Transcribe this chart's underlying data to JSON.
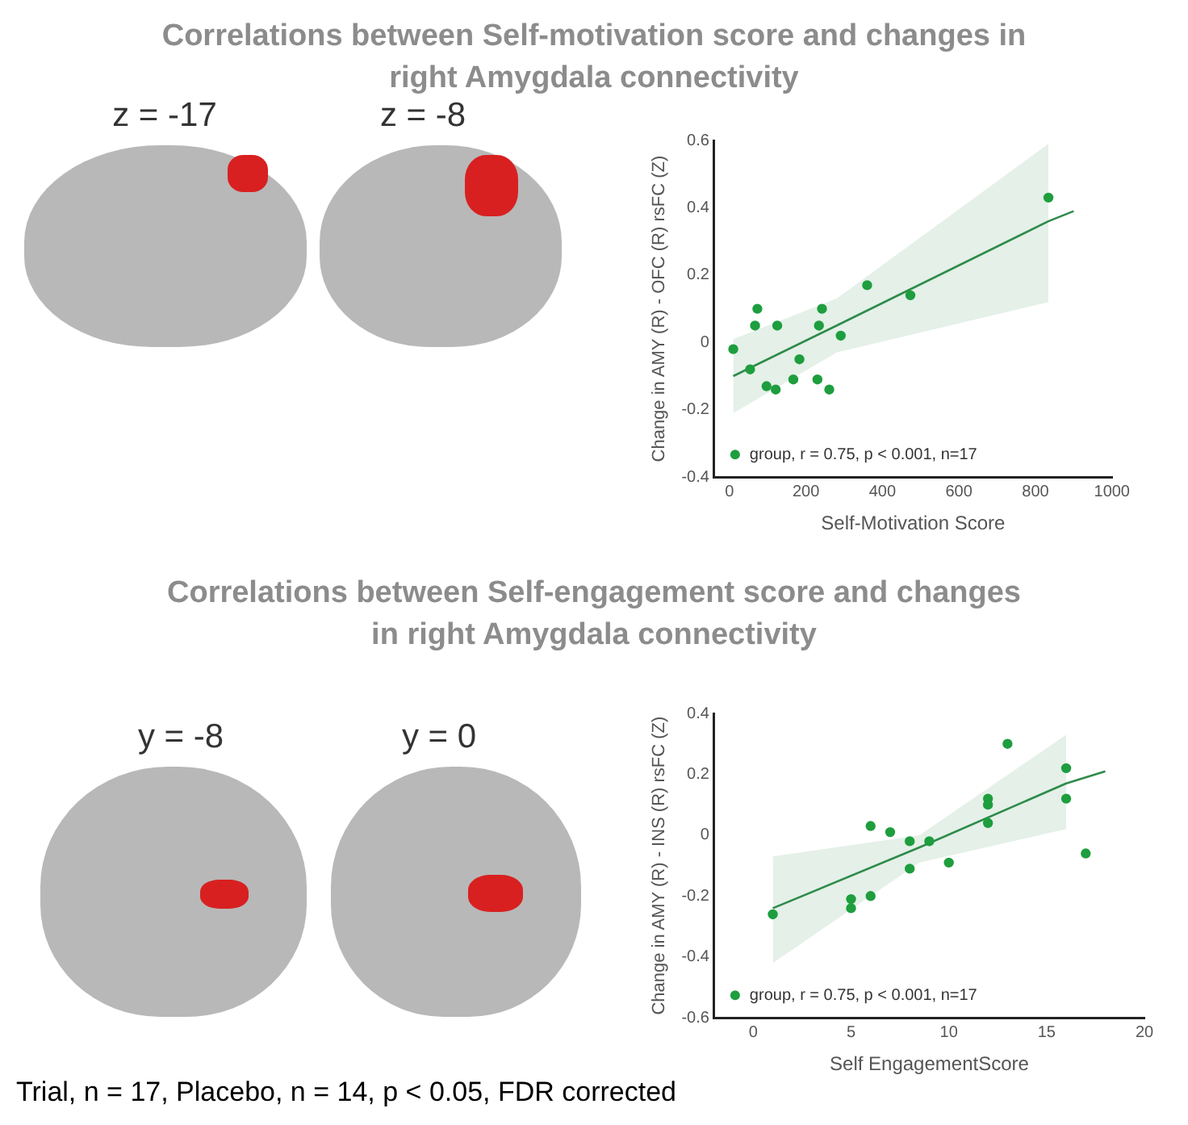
{
  "chart_data": [
    {
      "type": "scatter",
      "title": "Correlations between Self-motivation score and changes in right Amygdala connectivity",
      "xlabel": "Self-Motivation Score",
      "ylabel": "Change in AMY (R) - OFC (R) rsFC (Z)",
      "annotations": [
        "z = -17",
        "z = -8"
      ],
      "xlim": [
        -40,
        1000
      ],
      "xticks": [
        0,
        200,
        400,
        600,
        800,
        1000
      ],
      "ylim": [
        -0.4,
        0.6
      ],
      "yticks": [
        -0.4,
        -0.2,
        0,
        0.2,
        0.4,
        0.6
      ],
      "grid": false,
      "legend": "bottom left",
      "series": [
        {
          "name": "group, r = 0.75, p < 0.001, n=17",
          "color": "#1e9e3e",
          "marker": "circle",
          "x": [
            10,
            54,
            73,
            67,
            97,
            121,
            125,
            167,
            183,
            230,
            234,
            242,
            261,
            291,
            360,
            473,
            834
          ],
          "values": [
            -0.02,
            -0.08,
            0.1,
            0.05,
            -0.13,
            -0.14,
            0.05,
            -0.11,
            -0.05,
            -0.11,
            0.05,
            0.1,
            -0.14,
            0.02,
            0.17,
            0.14,
            0.43
          ]
        },
        {
          "type": "line",
          "color": "#2e8b4a",
          "marker": "none",
          "x": [
            10,
            280,
            834,
            900
          ],
          "values": [
            -0.1,
            0.05,
            0.36,
            0.39
          ],
          "lower": [
            -0.21,
            -0.03,
            0.12,
            null
          ],
          "upper": [
            0.01,
            0.13,
            0.59,
            null
          ]
        }
      ]
    },
    {
      "type": "scatter",
      "title": "Correlations between Self-engagement score and changes in right Amygdala connectivity",
      "xlabel": "Self EngagementScore",
      "ylabel": "Change in AMY (R) - INS (R) rsFC (Z)",
      "annotations": [
        "y = -8",
        "y = 0",
        "Trial, n = 17, Placebo, n = 14, p < 0.05, FDR corrected"
      ],
      "xlim": [
        -2,
        20
      ],
      "xticks": [
        0,
        5,
        10,
        15,
        20
      ],
      "ylim": [
        -0.6,
        0.4
      ],
      "yticks": [
        -0.6,
        -0.4,
        -0.2,
        0,
        0.2,
        0.4
      ],
      "grid": false,
      "legend": "bottom left",
      "series": [
        {
          "name": "group, r = 0.75, p < 0.001, n=17",
          "color": "#1e9e3e",
          "marker": "circle",
          "x": [
            1,
            5,
            5,
            6,
            6,
            7,
            8,
            8,
            9,
            10,
            12,
            12,
            12,
            13,
            16,
            16,
            17
          ],
          "values": [
            -0.26,
            -0.21,
            -0.24,
            0.03,
            -0.2,
            0.01,
            -0.02,
            -0.11,
            -0.02,
            -0.09,
            0.12,
            0.1,
            0.04,
            0.3,
            0.22,
            0.12,
            -0.06
          ]
        },
        {
          "type": "line",
          "color": "#2e8b4a",
          "marker": "none",
          "x": [
            1,
            8.5,
            16,
            18
          ],
          "values": [
            -0.24,
            -0.04,
            0.17,
            0.21
          ],
          "lower": [
            -0.42,
            -0.09,
            0.02,
            null
          ],
          "upper": [
            -0.07,
            0.0,
            0.33,
            null
          ]
        }
      ]
    }
  ]
}
